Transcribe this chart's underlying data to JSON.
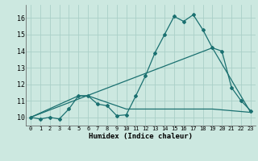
{
  "xlabel": "Humidex (Indice chaleur)",
  "background_color": "#cce8e0",
  "grid_color": "#aad0c8",
  "line_color": "#1a7070",
  "xlim": [
    -0.5,
    23.5
  ],
  "ylim": [
    9.5,
    16.8
  ],
  "yticks": [
    10,
    11,
    12,
    13,
    14,
    15,
    16
  ],
  "xticks": [
    0,
    1,
    2,
    3,
    4,
    5,
    6,
    7,
    8,
    9,
    10,
    11,
    12,
    13,
    14,
    15,
    16,
    17,
    18,
    19,
    20,
    21,
    22,
    23
  ],
  "line1_x": [
    0,
    1,
    2,
    3,
    4,
    5,
    6,
    7,
    8,
    9,
    10,
    11,
    12,
    13,
    14,
    15,
    16,
    17,
    18,
    19,
    20,
    21,
    22,
    23
  ],
  "line1_y": [
    10.0,
    9.9,
    10.0,
    9.9,
    10.5,
    11.3,
    11.3,
    10.8,
    10.7,
    10.1,
    10.15,
    11.3,
    12.5,
    13.9,
    15.0,
    16.1,
    15.8,
    16.2,
    15.3,
    14.2,
    14.0,
    11.8,
    11.0,
    10.4
  ],
  "line2_x": [
    0,
    5,
    6,
    10,
    19,
    23
  ],
  "line2_y": [
    10.0,
    11.3,
    11.3,
    10.5,
    10.5,
    10.3
  ],
  "line3_x": [
    0,
    19,
    23
  ],
  "line3_y": [
    10.0,
    14.2,
    10.3
  ],
  "marker": "D",
  "marker_size": 2.0,
  "line_width": 0.9
}
